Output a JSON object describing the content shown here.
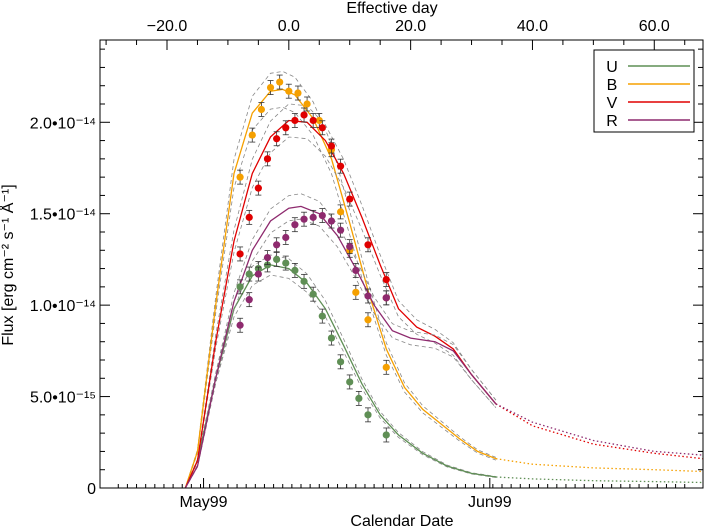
{
  "chart_data": {
    "type": "scatter",
    "title": "",
    "xlabel": "Calendar Date",
    "x2label": "Effective day",
    "ylabel": "Flux [erg cm⁻² s⁻¹ Å⁻¹]",
    "ylim": [
      0,
      2.45e-14
    ],
    "xlim": [
      -31,
      68
    ],
    "x_top_ticks": [
      {
        "value": -20,
        "label": "−20.0"
      },
      {
        "value": 0,
        "label": "0.0"
      },
      {
        "value": 20,
        "label": "20.0"
      },
      {
        "value": 40,
        "label": "40.0"
      },
      {
        "value": 60,
        "label": "60.0"
      }
    ],
    "x_bottom_ticks": [
      {
        "value": -14,
        "label": "May99"
      },
      {
        "value": 33,
        "label": "Jun99"
      }
    ],
    "y_ticks": [
      {
        "value": 0,
        "label": "0"
      },
      {
        "value": 5e-15,
        "label": "5.0•10⁻¹⁵"
      },
      {
        "value": 1e-14,
        "label": "1.0•10⁻¹⁴"
      },
      {
        "value": 1.5e-14,
        "label": "1.5•10⁻¹⁴"
      },
      {
        "value": 2e-14,
        "label": "2.0•10⁻¹⁴"
      }
    ],
    "grid": false,
    "legend_position": "top-right",
    "series": [
      {
        "name": "U",
        "color": "#5f8f55",
        "x": [
          -8,
          -6.5,
          -5,
          -3.5,
          -2,
          -0.5,
          1,
          2.5,
          4,
          5.5,
          7,
          8.5,
          10,
          11.5,
          13,
          16
        ],
        "y": [
          1.1e-14,
          1.17e-14,
          1.2e-14,
          1.22e-14,
          1.25e-14,
          1.23e-14,
          1.19e-14,
          1.13e-14,
          1.06e-14,
          9.4e-15,
          8.2e-15,
          6.9e-15,
          5.8e-15,
          4.9e-15,
          4e-15,
          2.9e-15
        ],
        "model": [
          [
            -17,
            0
          ],
          [
            -15,
            1.5e-15
          ],
          [
            -12,
            6e-15
          ],
          [
            -9,
            9.8e-15
          ],
          [
            -6,
            1.16e-14
          ],
          [
            -3,
            1.22e-14
          ],
          [
            0,
            1.2e-14
          ],
          [
            3,
            1.12e-14
          ],
          [
            6,
            9.8e-15
          ],
          [
            9,
            7.8e-15
          ],
          [
            12,
            5.7e-15
          ],
          [
            15,
            4e-15
          ],
          [
            18,
            2.9e-15
          ],
          [
            22,
            1.9e-15
          ],
          [
            26,
            1.2e-15
          ],
          [
            30,
            8e-16
          ],
          [
            34,
            6e-16
          ]
        ],
        "model_extrap": [
          [
            34,
            6e-16
          ],
          [
            40,
            5e-16
          ],
          [
            50,
            4e-16
          ],
          [
            60,
            3.5e-16
          ],
          [
            68,
            3e-16
          ]
        ]
      },
      {
        "name": "B",
        "color": "#f5a000",
        "x": [
          -8,
          -6,
          -4.5,
          -3,
          -1.5,
          0,
          1.5,
          3,
          5,
          7,
          8.5,
          10,
          11,
          13,
          16
        ],
        "y": [
          1.7e-14,
          1.93e-14,
          2.07e-14,
          2.19e-14,
          2.22e-14,
          2.17e-14,
          2.16e-14,
          2.1e-14,
          2.01e-14,
          1.85e-14,
          1.51e-14,
          1.3e-14,
          1.07e-14,
          9.2e-15,
          6.6e-15
        ],
        "model": [
          [
            -17,
            0
          ],
          [
            -15,
            2e-15
          ],
          [
            -12,
            1e-14
          ],
          [
            -9,
            1.72e-14
          ],
          [
            -6,
            2.05e-14
          ],
          [
            -3,
            2.17e-14
          ],
          [
            -1,
            2.18e-14
          ],
          [
            1,
            2.15e-14
          ],
          [
            4,
            2.02e-14
          ],
          [
            7,
            1.8e-14
          ],
          [
            10,
            1.45e-14
          ],
          [
            13,
            1.08e-14
          ],
          [
            16,
            7.6e-15
          ],
          [
            19,
            5.5e-15
          ],
          [
            22,
            4.3e-15
          ],
          [
            25,
            3.5e-15
          ],
          [
            28,
            2.7e-15
          ],
          [
            31,
            2e-15
          ],
          [
            34,
            1.6e-15
          ]
        ],
        "model_extrap": [
          [
            34,
            1.6e-15
          ],
          [
            40,
            1.3e-15
          ],
          [
            50,
            1.1e-15
          ],
          [
            60,
            1e-15
          ],
          [
            68,
            9e-16
          ]
        ]
      },
      {
        "name": "V",
        "color": "#e00000",
        "x": [
          -8,
          -6.5,
          -5,
          -3.5,
          -2,
          -0.5,
          1,
          2.5,
          4,
          5.5,
          7,
          8.5,
          10,
          13,
          16,
          16
        ],
        "y": [
          1.28e-14,
          1.48e-14,
          1.64e-14,
          1.8e-14,
          1.91e-14,
          1.97e-14,
          2.01e-14,
          2.04e-14,
          2.01e-14,
          1.97e-14,
          1.87e-14,
          1.76e-14,
          1.58e-14,
          1.33e-14,
          1.14e-14,
          1.04e-14
        ],
        "model": [
          [
            -17,
            0
          ],
          [
            -15,
            1.5e-15
          ],
          [
            -12,
            8e-15
          ],
          [
            -9,
            1.35e-14
          ],
          [
            -6,
            1.72e-14
          ],
          [
            -3,
            1.92e-14
          ],
          [
            0,
            2.01e-14
          ],
          [
            3,
            2e-14
          ],
          [
            6,
            1.9e-14
          ],
          [
            9,
            1.72e-14
          ],
          [
            12,
            1.48e-14
          ],
          [
            15,
            1.22e-14
          ],
          [
            18,
            9.8e-15
          ],
          [
            21,
            8.8e-15
          ],
          [
            24,
            8.3e-15
          ],
          [
            27,
            7.6e-15
          ],
          [
            30,
            6.2e-15
          ],
          [
            34,
            4.6e-15
          ]
        ],
        "model_extrap": [
          [
            34,
            4.6e-15
          ],
          [
            40,
            3.4e-15
          ],
          [
            50,
            2.4e-15
          ],
          [
            60,
            1.9e-15
          ],
          [
            68,
            1.6e-15
          ]
        ]
      },
      {
        "name": "R",
        "color": "#8e2a6e",
        "x": [
          -8,
          -6.5,
          -5,
          -3.5,
          -2,
          -0.5,
          1,
          2.5,
          4,
          5.5,
          7,
          8.5,
          10,
          11,
          13,
          16
        ],
        "y": [
          8.9e-15,
          1.03e-14,
          1.17e-14,
          1.26e-14,
          1.33e-14,
          1.37e-14,
          1.44e-14,
          1.47e-14,
          1.48e-14,
          1.49e-14,
          1.46e-14,
          1.41e-14,
          1.32e-14,
          1.19e-14,
          1.05e-14,
          1.04e-14
        ],
        "model": [
          [
            -17,
            0
          ],
          [
            -15,
            1.2e-15
          ],
          [
            -12,
            6e-15
          ],
          [
            -9,
            1.02e-14
          ],
          [
            -6,
            1.3e-14
          ],
          [
            -3,
            1.46e-14
          ],
          [
            0,
            1.53e-14
          ],
          [
            2,
            1.54e-14
          ],
          [
            5,
            1.5e-14
          ],
          [
            8,
            1.38e-14
          ],
          [
            11,
            1.2e-14
          ],
          [
            14,
            1e-14
          ],
          [
            17,
            8.6e-15
          ],
          [
            20,
            8.2e-15
          ],
          [
            24,
            8e-15
          ],
          [
            27,
            7.5e-15
          ],
          [
            30,
            6.2e-15
          ],
          [
            34,
            4.6e-15
          ]
        ],
        "model_extrap": [
          [
            34,
            4.6e-15
          ],
          [
            40,
            3.6e-15
          ],
          [
            50,
            2.6e-15
          ],
          [
            60,
            2e-15
          ],
          [
            68,
            1.8e-15
          ]
        ]
      }
    ]
  }
}
